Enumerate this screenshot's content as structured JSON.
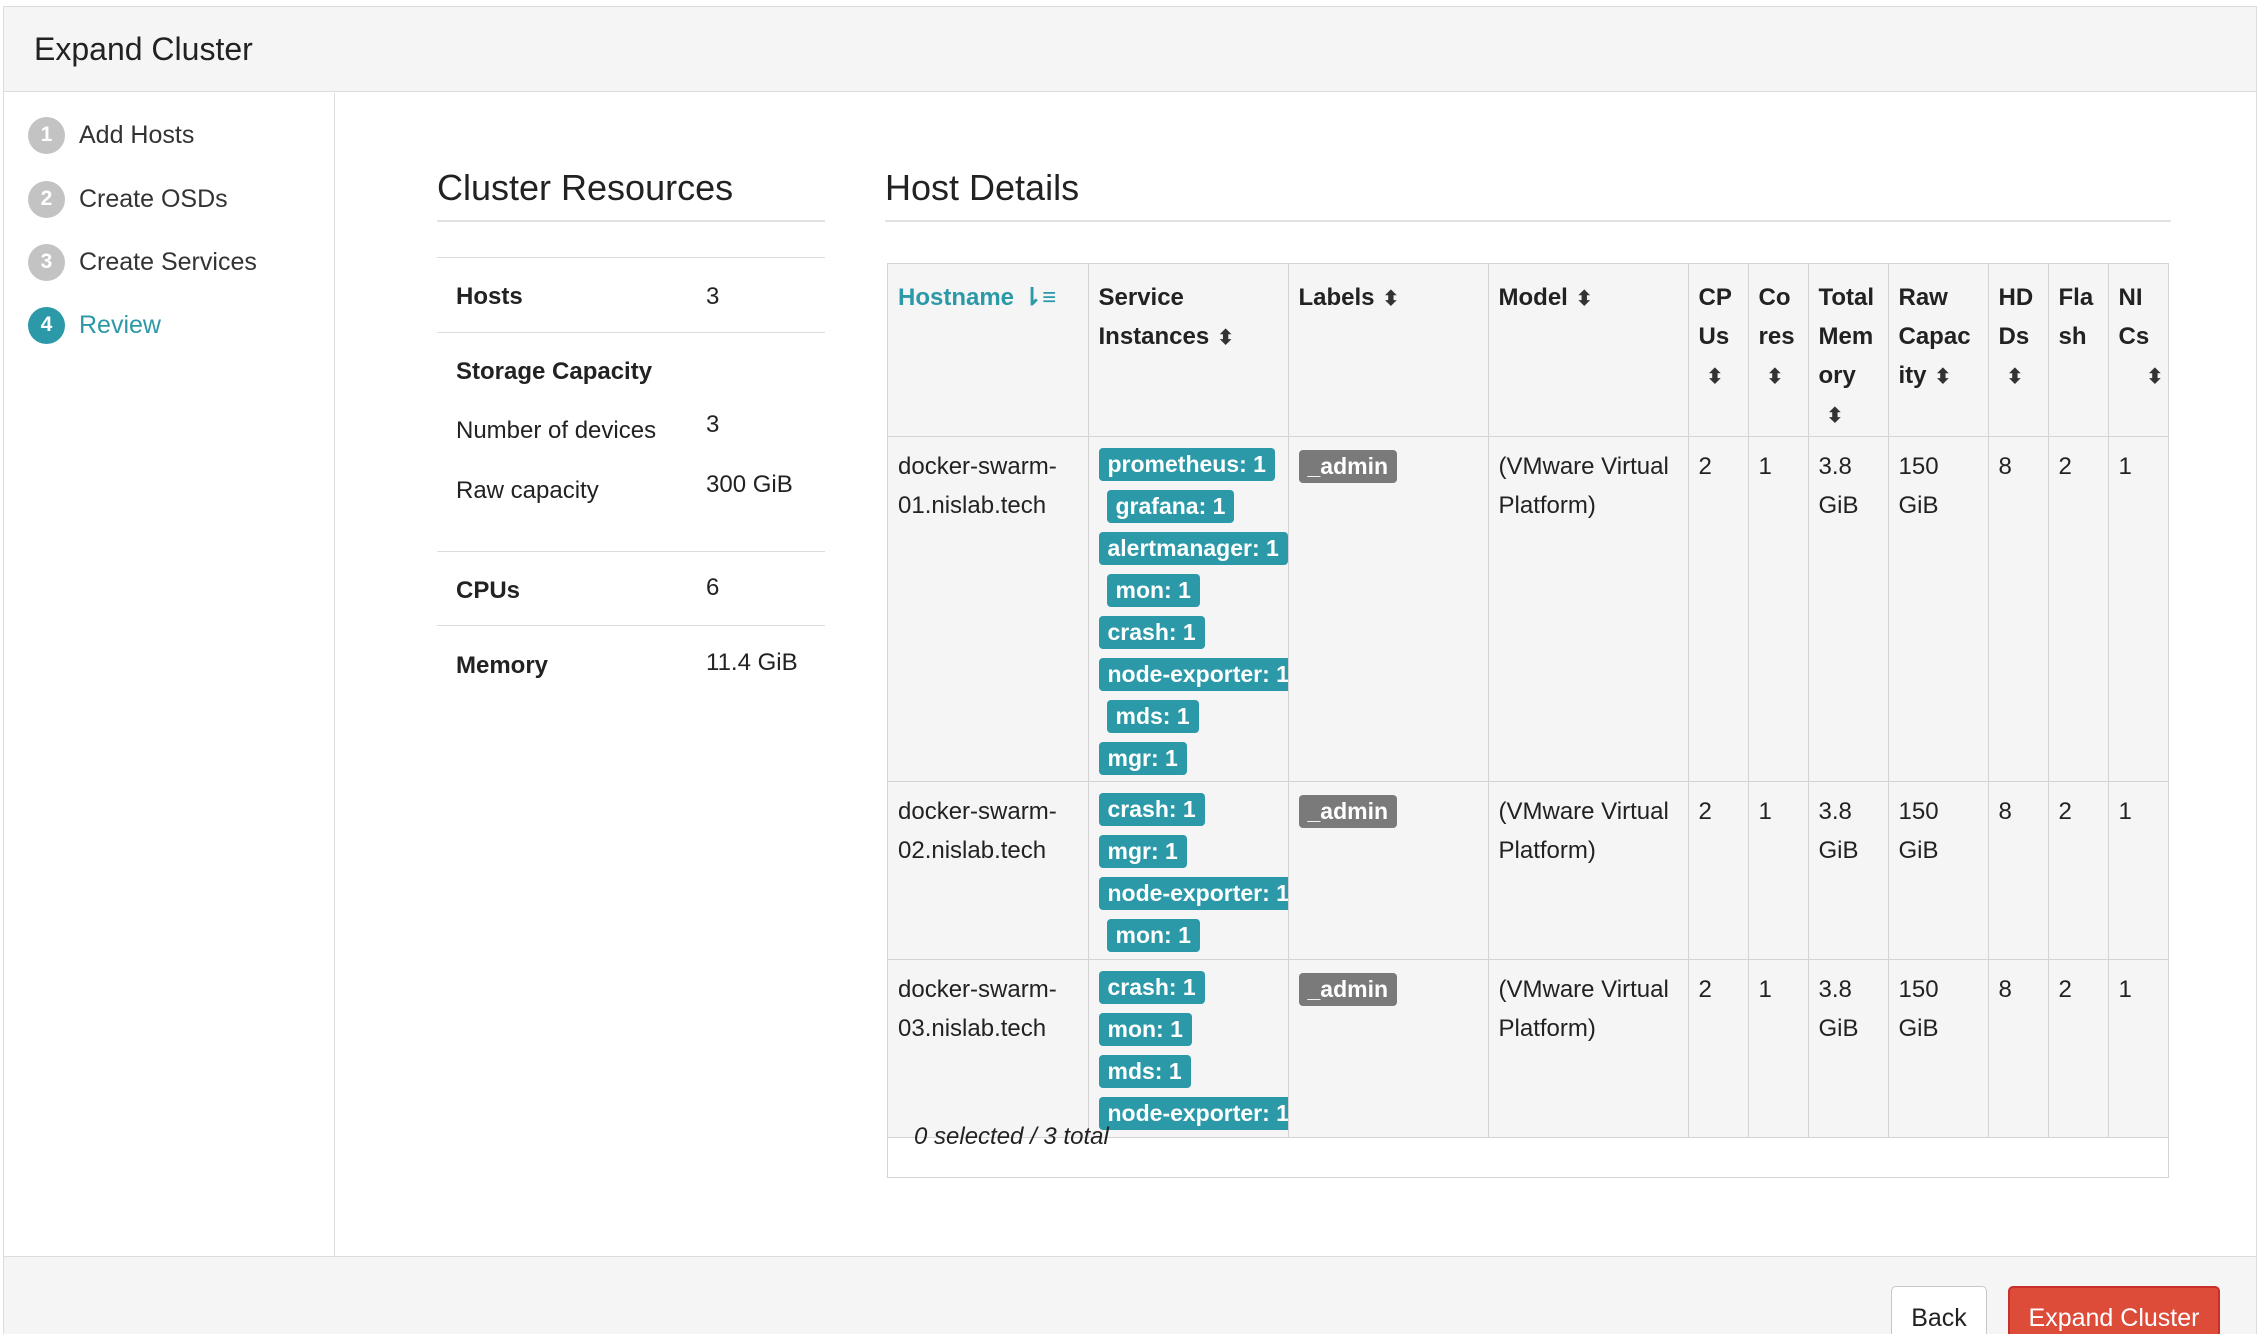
{
  "page": {
    "title": "Expand Cluster"
  },
  "steps": [
    {
      "num": "1",
      "label": "Add Hosts"
    },
    {
      "num": "2",
      "label": "Create OSDs"
    },
    {
      "num": "3",
      "label": "Create Services"
    },
    {
      "num": "4",
      "label": "Review",
      "active": true
    }
  ],
  "resources": {
    "title": "Cluster Resources",
    "hosts_label": "Hosts",
    "hosts_value": "3",
    "storage_label": "Storage Capacity",
    "devices_label": "Number of devices",
    "devices_value": "3",
    "raw_label": "Raw capacity",
    "raw_value": "300 GiB",
    "cpus_label": "CPUs",
    "cpus_value": "6",
    "memory_label": "Memory",
    "memory_value": "11.4 GiB"
  },
  "host_details": {
    "title": "Host Details",
    "columns": [
      "Hostname",
      "Service Instances",
      "Labels",
      "Model",
      "CPUs",
      "Cores",
      "Total Memory",
      "Raw Capacity",
      "HDDs",
      "Flash",
      "NICs"
    ],
    "col_lines": {
      "svc": [
        "Service",
        "Instances"
      ],
      "cpus": [
        "CP",
        "Us"
      ],
      "cores": [
        "Co",
        "res"
      ],
      "mem": [
        "Total",
        "Mem",
        "ory"
      ],
      "raw": [
        "Raw",
        "Capac",
        "ity"
      ],
      "hdds": [
        "HD",
        "Ds"
      ],
      "flash": [
        "Fla",
        "sh"
      ],
      "nics": [
        "NI",
        "Cs"
      ]
    },
    "rows": [
      {
        "host": [
          "docker-swarm-",
          "01.nislab.tech"
        ],
        "services": [
          "prometheus: 1",
          "grafana: 1",
          "alertmanager: 1",
          "mon: 1",
          "crash: 1",
          "node-exporter: 1",
          "mds: 1",
          "mgr: 1"
        ],
        "label": "_admin",
        "model": [
          "(VMware Virtual",
          "Platform)"
        ],
        "cpus": "2",
        "cores": "1",
        "mem": [
          "3.8",
          "GiB"
        ],
        "raw": [
          "150",
          "GiB"
        ],
        "hdds": "8",
        "flash": "2",
        "nics": "1"
      },
      {
        "host": [
          "docker-swarm-",
          "02.nislab.tech"
        ],
        "services": [
          "crash: 1",
          "mgr: 1",
          "node-exporter: 1",
          "mon: 1"
        ],
        "label": "_admin",
        "model": [
          "(VMware Virtual",
          "Platform)"
        ],
        "cpus": "2",
        "cores": "1",
        "mem": [
          "3.8",
          "GiB"
        ],
        "raw": [
          "150",
          "GiB"
        ],
        "hdds": "8",
        "flash": "2",
        "nics": "1"
      },
      {
        "host": [
          "docker-swarm-",
          "03.nislab.tech"
        ],
        "services": [
          "crash: 1",
          "mon: 1",
          "mds: 1",
          "node-exporter: 1"
        ],
        "label": "_admin",
        "model": [
          "(VMware Virtual",
          "Platform)"
        ],
        "cpus": "2",
        "cores": "1",
        "mem": [
          "3.8",
          "GiB"
        ],
        "raw": [
          "150",
          "GiB"
        ],
        "hdds": "8",
        "flash": "2",
        "nics": "1"
      }
    ],
    "footer": "0 selected / 3 total"
  },
  "buttons": {
    "back": "Back",
    "expand": "Expand Cluster"
  },
  "colors": {
    "accent": "#2b99a8",
    "danger": "#dd4b39",
    "badge_grey": "#7a7a7a"
  },
  "icons": {
    "sort_active": "sort-amount-up-icon",
    "sort": "sort-icon"
  }
}
